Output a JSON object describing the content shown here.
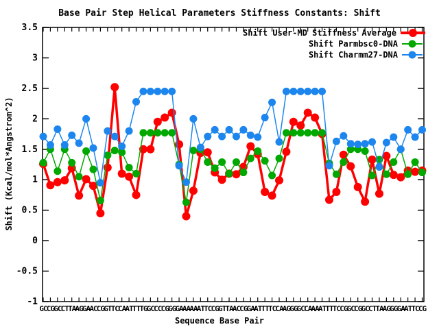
{
  "chart_data": {
    "type": "line",
    "title": "Base Pair Step Helical Parameters Stiffness Constants: Shift",
    "xlabel": "Sequence Base Pair",
    "ylabel": "Shift (Kcal/mol*Angstrom^2)",
    "ylim": [
      -1,
      3.5
    ],
    "ytick_labels": [
      "3.5",
      "3",
      "2.5",
      "2",
      "1.5",
      "1",
      "0.5",
      "0",
      "-0.5",
      "-1"
    ],
    "ytick_values": [
      3.5,
      3,
      2.5,
      2,
      1.5,
      1,
      0.5,
      0,
      -0.5,
      -1
    ],
    "grid": "off",
    "legend_position": "top-right-inside",
    "categories": [
      "GC",
      "CG",
      "GC",
      "CT",
      "TA",
      "AG",
      "GA",
      "AC",
      "CG",
      "GT",
      "TC",
      "CA",
      "AT",
      "TT",
      "TG",
      "GC",
      "CC",
      "CG",
      "GG",
      "GA",
      "AA",
      "AA",
      "AT",
      "TC",
      "CG",
      "GT",
      "TA",
      "AC",
      "CG",
      "GA",
      "AT",
      "TT",
      "TC",
      "CA",
      "AG",
      "GG",
      "GC",
      "CA",
      "AA",
      "AT",
      "TT",
      "TC",
      "CG",
      "GC",
      "CG",
      "GC",
      "CT",
      "TA",
      "AG",
      "GG",
      "GA",
      "AT",
      "TC",
      "CG"
    ],
    "series": [
      {
        "name": "Shift User-MD Stiffness Average",
        "color": "#ff0000",
        "marker_radius": 6,
        "line_width": 3.5,
        "values": [
          1.26,
          0.91,
          0.96,
          0.99,
          1.19,
          0.74,
          1.01,
          0.9,
          0.45,
          1.2,
          2.52,
          1.1,
          1.05,
          0.75,
          1.5,
          1.5,
          1.95,
          2.02,
          2.1,
          1.58,
          0.4,
          0.82,
          1.44,
          1.45,
          1.12,
          1.0,
          1.1,
          1.09,
          1.21,
          1.55,
          1.42,
          0.8,
          0.74,
          0.99,
          1.46,
          1.95,
          1.89,
          2.1,
          2.02,
          1.75,
          0.67,
          0.8,
          1.41,
          1.22,
          0.88,
          0.64,
          1.33,
          0.77,
          1.39,
          1.08,
          1.04,
          1.15,
          1.13,
          1.15
        ]
      },
      {
        "name": "Shift Parmbsc0-DNA",
        "color": "#00a800",
        "marker_radius": 5.5,
        "line_width": 1.5,
        "values": [
          1.28,
          1.5,
          1.14,
          1.5,
          1.28,
          1.05,
          1.47,
          1.17,
          0.66,
          1.4,
          1.48,
          1.45,
          1.2,
          1.1,
          1.77,
          1.77,
          1.77,
          1.77,
          1.77,
          1.25,
          0.63,
          1.48,
          1.5,
          1.29,
          1.19,
          1.29,
          1.1,
          1.29,
          1.12,
          1.35,
          1.47,
          1.31,
          1.07,
          1.35,
          1.77,
          1.77,
          1.77,
          1.77,
          1.77,
          1.77,
          1.27,
          1.09,
          1.29,
          1.5,
          1.5,
          1.47,
          1.07,
          1.33,
          1.09,
          1.29,
          1.5,
          1.09,
          1.29,
          1.12
        ]
      },
      {
        "name": "Shift Charmm27-DNA",
        "color": "#1c86ee",
        "marker_radius": 5.5,
        "line_width": 1.5,
        "values": [
          1.71,
          1.57,
          1.83,
          1.57,
          1.73,
          1.6,
          2.0,
          1.52,
          0.95,
          1.8,
          1.71,
          1.55,
          1.8,
          2.28,
          2.45,
          2.45,
          2.45,
          2.45,
          2.45,
          1.23,
          0.96,
          2.0,
          1.53,
          1.71,
          1.82,
          1.71,
          1.82,
          1.71,
          1.82,
          1.73,
          1.7,
          2.02,
          2.27,
          1.62,
          2.45,
          2.45,
          2.45,
          2.45,
          2.45,
          2.45,
          1.23,
          1.63,
          1.72,
          1.59,
          1.58,
          1.59,
          1.62,
          1.21,
          1.61,
          1.7,
          1.5,
          1.82,
          1.7,
          1.82
        ]
      }
    ]
  }
}
